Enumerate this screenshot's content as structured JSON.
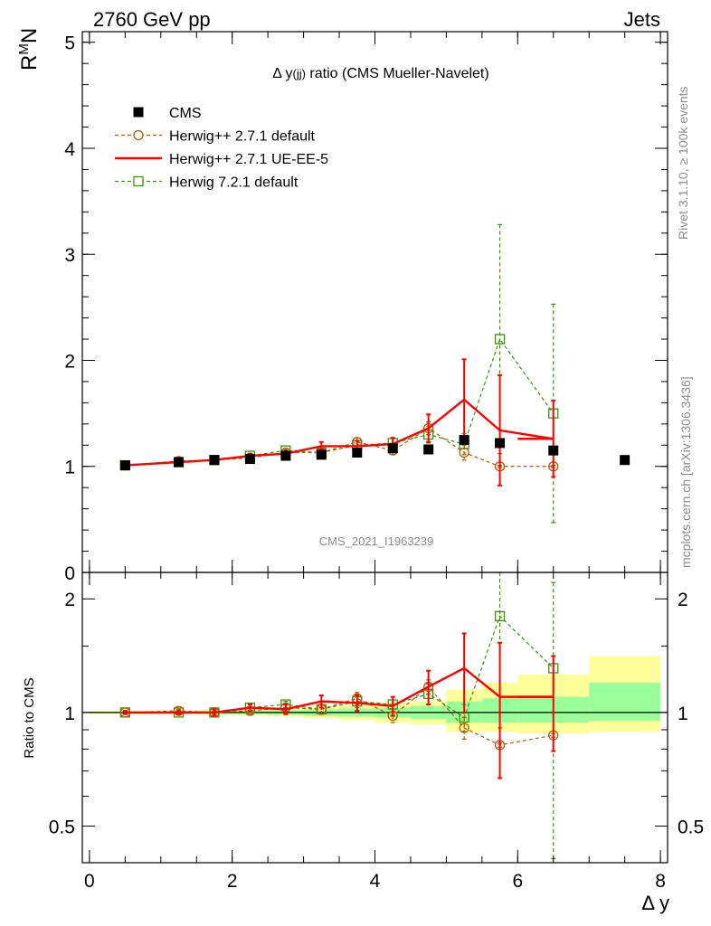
{
  "header": {
    "left": "2760 GeV pp",
    "right": "Jets"
  },
  "side_text": {
    "rivet": "Rivet 3.1.10, ≥ 100k events",
    "mcplots": "mcplots.cern.ch [arXiv:1306.3436]"
  },
  "colors": {
    "cms": "#000000",
    "herwig_default": "#b35900",
    "herwig_ueee5": "#ff0000",
    "herwig7": "#339900",
    "band_inner": "#99ff99",
    "band_outer": "#ffff99"
  },
  "chart_data": [
    {
      "type": "scatter",
      "panel": "main",
      "title_prefix": "Δ y",
      "title_sub": "(jj)",
      "title_suffix": " ratio (CMS Mueller-Navelet)",
      "ylabel": "R",
      "ylabel_sup": "M",
      "ylabel_suffix": "N",
      "watermark": "CMS_2021_I1963239",
      "xlim": [
        -0.1,
        8.1
      ],
      "ylim": [
        0,
        5.1
      ],
      "yticks": [
        0,
        1,
        2,
        3,
        4,
        5
      ],
      "ytick_labels": [
        "0",
        "1",
        "2",
        "3",
        "4",
        "5"
      ],
      "grid": false,
      "legend_position": "top-left",
      "legend": [
        "CMS",
        "Herwig++ 2.7.1 default",
        "Herwig++ 2.7.1 UE-EE-5",
        "Herwig 7.2.1 default"
      ],
      "series": [
        {
          "name": "CMS",
          "style": "markers-filled-square",
          "x": [
            0.5,
            1.25,
            1.75,
            2.25,
            2.75,
            3.25,
            3.75,
            4.25,
            4.75,
            5.25,
            5.75,
            6.5,
            7.5
          ],
          "y": [
            1.01,
            1.04,
            1.06,
            1.07,
            1.1,
            1.11,
            1.13,
            1.17,
            1.16,
            1.25,
            1.22,
            1.15,
            1.06
          ]
        },
        {
          "name": "Herwig++ 2.7.1 default",
          "style": "dashed-open-circle",
          "x": [
            0.5,
            1.25,
            1.75,
            2.25,
            2.75,
            3.25,
            3.75,
            4.25,
            4.75,
            5.25,
            5.75,
            6.5
          ],
          "y": [
            1.01,
            1.05,
            1.06,
            1.08,
            1.13,
            1.13,
            1.23,
            1.15,
            1.36,
            1.13,
            1.0,
            1.0
          ],
          "err": [
            0.01,
            0.01,
            0.01,
            0.02,
            0.02,
            0.03,
            0.04,
            0.04,
            0.06,
            0.07,
            0.01,
            0.01
          ]
        },
        {
          "name": "Herwig++ 2.7.1 UE-EE-5",
          "style": "solid-step",
          "x": [
            0.5,
            1.25,
            1.75,
            2.25,
            2.75,
            3.25,
            3.75,
            4.25,
            4.75,
            5.25,
            5.75,
            6.5
          ],
          "xlo": [
            0.0,
            1.0,
            1.5,
            2.0,
            2.5,
            3.0,
            3.5,
            4.0,
            4.5,
            5.0,
            5.5,
            6.0
          ],
          "xhi": [
            1.0,
            1.5,
            2.0,
            2.5,
            3.0,
            3.5,
            4.0,
            4.5,
            5.0,
            5.5,
            6.0,
            7.0
          ],
          "y": [
            1.01,
            1.04,
            1.06,
            1.1,
            1.12,
            1.19,
            1.19,
            1.21,
            1.36,
            1.63,
            1.34,
            1.26
          ],
          "err": [
            0.01,
            0.01,
            0.02,
            0.02,
            0.03,
            0.04,
            0.05,
            0.06,
            0.13,
            0.38,
            0.52,
            0.36
          ]
        },
        {
          "name": "Herwig 7.2.1 default",
          "style": "dashed-open-square",
          "x": [
            0.5,
            1.25,
            1.75,
            2.25,
            2.75,
            3.25,
            3.75,
            4.25,
            4.75,
            5.25,
            5.75,
            6.5
          ],
          "y": [
            1.01,
            1.04,
            1.06,
            1.1,
            1.15,
            1.13,
            1.2,
            1.22,
            1.3,
            1.21,
            2.2,
            1.5
          ],
          "err": [
            0.01,
            0.01,
            0.01,
            0.02,
            0.02,
            0.03,
            0.04,
            0.05,
            0.08,
            0.1,
            1.08,
            1.03
          ]
        }
      ]
    },
    {
      "type": "scatter",
      "panel": "ratio",
      "ylabel": "Ratio to CMS",
      "xlabel": "Δ y",
      "xlim": [
        -0.1,
        8.1
      ],
      "ylim": [
        0.4,
        2.35
      ],
      "log_y": true,
      "yticks": [
        0.5,
        1,
        2
      ],
      "ytick_labels": [
        "0.5",
        "1",
        "2"
      ],
      "xticks": [
        0,
        2,
        4,
        6,
        8
      ],
      "xtick_labels": [
        "0",
        "2",
        "4",
        "6",
        "8"
      ],
      "grid": false,
      "bands": {
        "edges": [
          0.0,
          1.0,
          1.5,
          2.0,
          2.5,
          3.0,
          3.5,
          4.0,
          4.5,
          5.0,
          5.5,
          6.0,
          7.0,
          8.0
        ],
        "inner_lo": [
          0.995,
          0.995,
          0.99,
          0.99,
          0.985,
          0.98,
          0.975,
          0.97,
          0.96,
          0.94,
          0.94,
          0.94,
          0.95
        ],
        "inner_hi": [
          1.005,
          1.005,
          1.01,
          1.01,
          1.015,
          1.02,
          1.025,
          1.03,
          1.04,
          1.07,
          1.09,
          1.1,
          1.2
        ],
        "outer_lo": [
          0.99,
          0.99,
          0.985,
          0.98,
          0.975,
          0.965,
          0.955,
          0.94,
          0.93,
          0.89,
          0.89,
          0.88,
          0.89
        ],
        "outer_hi": [
          1.01,
          1.01,
          1.015,
          1.02,
          1.025,
          1.035,
          1.045,
          1.06,
          1.07,
          1.15,
          1.2,
          1.26,
          1.41
        ]
      },
      "series": [
        {
          "name": "Herwig++ 2.7.1 default",
          "style": "dashed-open-circle",
          "x": [
            0.5,
            1.25,
            1.75,
            2.25,
            2.75,
            3.25,
            3.75,
            4.25,
            4.75,
            5.25,
            5.75,
            6.5
          ],
          "y": [
            1.0,
            1.01,
            1.0,
            1.01,
            1.03,
            1.02,
            1.09,
            0.98,
            1.17,
            0.91,
            0.82,
            0.87
          ],
          "err": [
            0.01,
            0.01,
            0.01,
            0.02,
            0.02,
            0.03,
            0.04,
            0.04,
            0.05,
            0.06,
            0.01,
            0.01
          ]
        },
        {
          "name": "Herwig++ 2.7.1 UE-EE-5",
          "style": "solid-step",
          "x": [
            0.5,
            1.25,
            1.75,
            2.25,
            2.75,
            3.25,
            3.75,
            4.25,
            4.75,
            5.25,
            5.75,
            6.5
          ],
          "xlo": [
            0.0,
            1.0,
            1.5,
            2.0,
            2.5,
            3.0,
            3.5,
            4.0,
            4.5,
            5.0,
            5.5,
            6.0
          ],
          "xhi": [
            1.0,
            1.5,
            2.0,
            2.5,
            3.0,
            3.5,
            4.0,
            4.5,
            5.0,
            5.5,
            6.0,
            7.0
          ],
          "y": [
            1.0,
            1.0,
            1.0,
            1.03,
            1.02,
            1.07,
            1.06,
            1.04,
            1.17,
            1.31,
            1.1,
            1.1
          ],
          "err": [
            0.01,
            0.01,
            0.02,
            0.02,
            0.03,
            0.04,
            0.05,
            0.06,
            0.12,
            0.31,
            0.43,
            0.31
          ]
        },
        {
          "name": "Herwig 7.2.1 default",
          "style": "dashed-open-square",
          "x": [
            0.5,
            1.25,
            1.75,
            2.25,
            2.75,
            3.25,
            3.75,
            4.25,
            4.75,
            5.25,
            5.75,
            6.5
          ],
          "y": [
            1.0,
            1.0,
            1.0,
            1.03,
            1.05,
            1.02,
            1.07,
            1.05,
            1.12,
            0.97,
            1.8,
            1.31
          ],
          "err": [
            0.01,
            0.01,
            0.01,
            0.02,
            0.02,
            0.03,
            0.04,
            0.05,
            0.07,
            0.08,
            0.89,
            0.9
          ]
        }
      ]
    }
  ]
}
